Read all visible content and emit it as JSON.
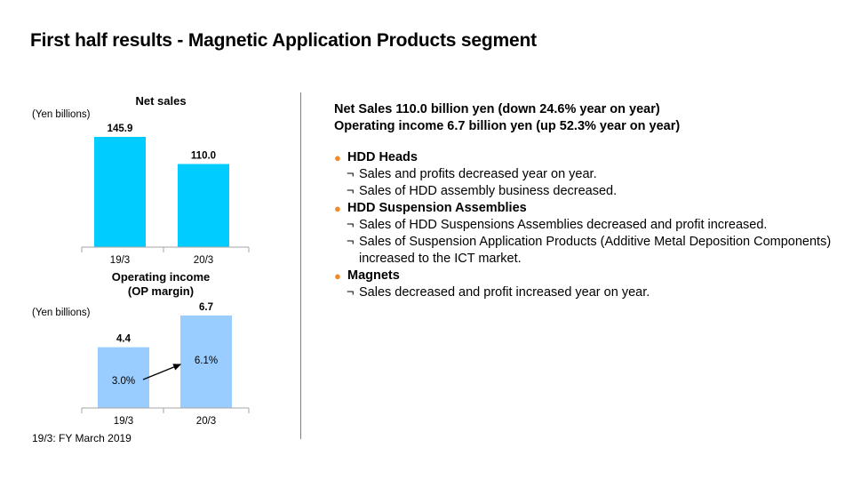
{
  "page": {
    "title": "First half results - Magnetic Application Products segment",
    "footnote": "19/3: FY March 2019"
  },
  "chart_data": [
    {
      "type": "bar",
      "title": "Net sales",
      "unit_label": "(Yen billions)",
      "categories": [
        "19/3",
        "20/3"
      ],
      "values": [
        145.9,
        110.0
      ],
      "value_labels": [
        "145.9",
        "110.0"
      ],
      "ylim": [
        0,
        160
      ],
      "color": "#00ccff",
      "grid": false
    },
    {
      "type": "bar",
      "title": "Operating income",
      "title_line2": "(OP margin)",
      "unit_label": "(Yen billions)",
      "categories": [
        "19/3",
        "20/3"
      ],
      "values": [
        4.4,
        6.7
      ],
      "value_labels": [
        "4.4",
        "6.7"
      ],
      "margins": [
        "3.0%",
        "6.1%"
      ],
      "ylim": [
        0,
        7.4
      ],
      "color": "#99ccff",
      "grid": false
    }
  ],
  "right": {
    "headline1": "Net Sales 110.0 billion  yen (down 24.6% year on year)",
    "headline2": "Operating income 6.7 billion  yen (up 52.3% year on year)",
    "sub_mark": "¬",
    "bullet_mark": "●",
    "sections": [
      {
        "heading": "HDD Heads",
        "items": [
          "Sales and profits decreased year on year.",
          "Sales of HDD assembly business decreased."
        ]
      },
      {
        "heading": "HDD Suspension Assemblies",
        "items": [
          "Sales of HDD Suspensions Assemblies decreased and profit increased.",
          "Sales of Suspension Application Products (Additive Metal Deposition Components)  increased to the ICT market."
        ]
      },
      {
        "heading": "Magnets",
        "items": [
          "Sales decreased and profit increased year on year."
        ]
      }
    ]
  }
}
